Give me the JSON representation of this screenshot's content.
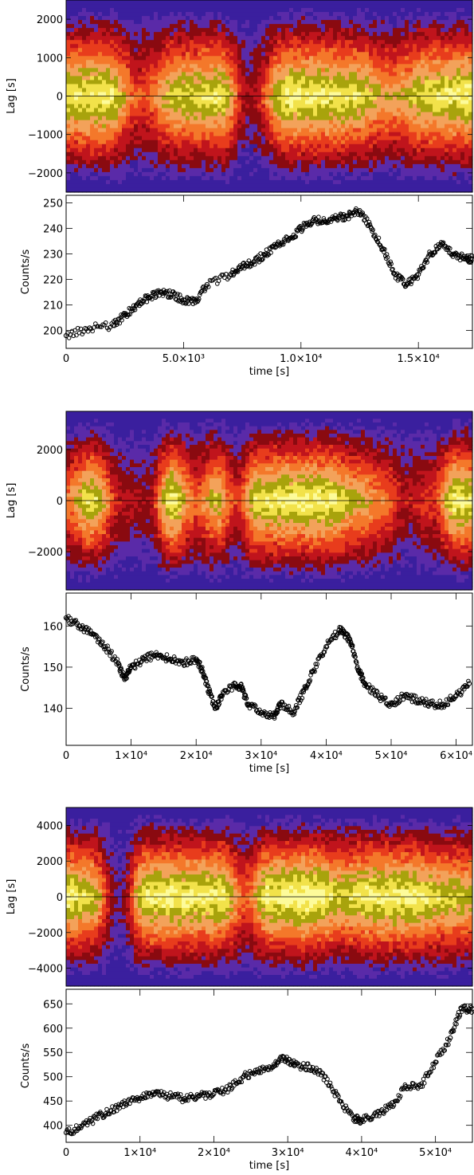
{
  "chart_data": [
    {
      "type": "heatmap",
      "ylabel": "Lag [s]",
      "ylim": [
        -2500,
        2500
      ],
      "yticks": [
        -2000,
        -1000,
        0,
        1000,
        2000
      ],
      "ytick_labels": [
        "−2000",
        "−1000",
        "0",
        "1000",
        "2000"
      ],
      "xlim": [
        0,
        17300
      ],
      "colors": [
        "#3a1f9e",
        "#5a2aa8",
        "#8a0a10",
        "#c0141c",
        "#e83c1c",
        "#f4782a",
        "#f3a25a",
        "#a8a30c",
        "#f2e24a",
        "#fdfb9a"
      ]
    },
    {
      "type": "scatter",
      "ylabel": "Counts/s",
      "xlabel": "time [s]",
      "xlim": [
        0,
        17300
      ],
      "ylim": [
        193,
        253
      ],
      "xticks": [
        0,
        5000,
        10000,
        15000
      ],
      "xtick_labels": [
        "0",
        "5.0×10³",
        "1.0×10⁴",
        "1.5×10⁴"
      ],
      "yticks": [
        200,
        210,
        220,
        230,
        240,
        250
      ],
      "ytick_labels": [
        "200",
        "210",
        "220",
        "230",
        "240",
        "250"
      ],
      "x": [
        0,
        1000,
        2000,
        2500,
        3000,
        3500,
        4000,
        4500,
        5000,
        5500,
        6000,
        7000,
        7500,
        8000,
        8500,
        9000,
        9500,
        10000,
        10500,
        11000,
        11500,
        12000,
        12500,
        13000,
        13500,
        14000,
        14500,
        15000,
        15500,
        16000,
        16500,
        17000,
        17300
      ],
      "y": [
        198,
        201,
        202,
        206,
        210,
        213,
        215,
        214,
        212,
        211,
        218,
        222,
        225,
        227,
        230,
        234,
        236,
        240,
        243,
        243,
        244,
        245,
        247,
        240,
        232,
        222,
        218,
        222,
        230,
        234,
        230,
        228,
        228
      ]
    },
    {
      "type": "heatmap",
      "ylabel": "Lag [s]",
      "ylim": [
        -3500,
        3500
      ],
      "yticks": [
        -2000,
        0,
        2000
      ],
      "ytick_labels": [
        "−2000",
        "0",
        "2000"
      ],
      "xlim": [
        0,
        62500
      ],
      "colors": [
        "#3a1f9e",
        "#5a2aa8",
        "#8a0a10",
        "#c0141c",
        "#e83c1c",
        "#f4782a",
        "#f3a25a",
        "#a8a30c",
        "#f2e24a",
        "#fdfb9a"
      ]
    },
    {
      "type": "scatter",
      "ylabel": "Counts/s",
      "xlabel": "time [s]",
      "xlim": [
        0,
        62500
      ],
      "ylim": [
        131,
        168
      ],
      "xticks": [
        0,
        10000,
        20000,
        30000,
        40000,
        50000,
        60000
      ],
      "xtick_labels": [
        "0",
        "1×10⁴",
        "2×10⁴",
        "3×10⁴",
        "4×10⁴",
        "5×10⁴",
        "6×10⁴"
      ],
      "yticks": [
        140,
        150,
        160
      ],
      "ytick_labels": [
        "140",
        "150",
        "160"
      ],
      "x": [
        0,
        2000,
        4000,
        6000,
        8000,
        9000,
        10000,
        12000,
        14000,
        16000,
        18000,
        20000,
        21000,
        22000,
        23000,
        24000,
        26000,
        27000,
        28000,
        30000,
        32000,
        33000,
        35000,
        36500,
        38000,
        40000,
        42000,
        43000,
        44000,
        45000,
        46000,
        48000,
        50000,
        52000,
        54000,
        56000,
        58000,
        60000,
        62000
      ],
      "y": [
        162,
        160,
        158,
        155,
        151,
        147,
        150,
        152,
        153,
        152,
        151,
        152,
        149,
        144,
        140,
        143,
        146,
        145,
        141,
        139,
        138,
        141,
        139,
        144,
        149,
        155,
        159,
        158,
        155,
        149,
        146,
        143,
        141,
        143,
        142,
        141,
        141,
        143,
        146
      ]
    },
    {
      "type": "heatmap",
      "ylabel": "Lag [s]",
      "ylim": [
        -5000,
        5000
      ],
      "yticks": [
        -4000,
        -2000,
        0,
        2000,
        4000
      ],
      "ytick_labels": [
        "−4000",
        "−2000",
        "0",
        "2000",
        "4000"
      ],
      "xlim": [
        0,
        55000
      ],
      "colors": [
        "#3a1f9e",
        "#5a2aa8",
        "#8a0a10",
        "#c0141c",
        "#e83c1c",
        "#f4782a",
        "#f3a25a",
        "#a8a30c",
        "#f2e24a",
        "#fdfb9a"
      ]
    },
    {
      "type": "scatter",
      "ylabel": "Counts/s",
      "xlabel": "time [s]",
      "xlim": [
        0,
        55000
      ],
      "ylim": [
        365,
        680
      ],
      "xticks": [
        0,
        10000,
        20000,
        30000,
        40000,
        50000
      ],
      "xtick_labels": [
        "0",
        "1×10⁴",
        "2×10⁴",
        "3×10⁴",
        "4×10⁴",
        "5×10⁴"
      ],
      "yticks": [
        400,
        450,
        500,
        550,
        600,
        650
      ],
      "ytick_labels": [
        "400",
        "450",
        "500",
        "550",
        "600",
        "650"
      ],
      "x": [
        0,
        2000,
        4000,
        6000,
        8000,
        10000,
        12000,
        14000,
        16000,
        18000,
        20000,
        22000,
        24000,
        26000,
        28000,
        29500,
        31000,
        33000,
        35000,
        37000,
        39000,
        40000,
        42000,
        44000,
        46000,
        48000,
        50000,
        52000,
        53500,
        55000
      ],
      "y": [
        385,
        395,
        415,
        430,
        445,
        455,
        465,
        460,
        455,
        460,
        465,
        475,
        500,
        510,
        520,
        540,
        525,
        520,
        500,
        450,
        415,
        410,
        420,
        440,
        480,
        480,
        530,
        580,
        640,
        640
      ]
    }
  ]
}
